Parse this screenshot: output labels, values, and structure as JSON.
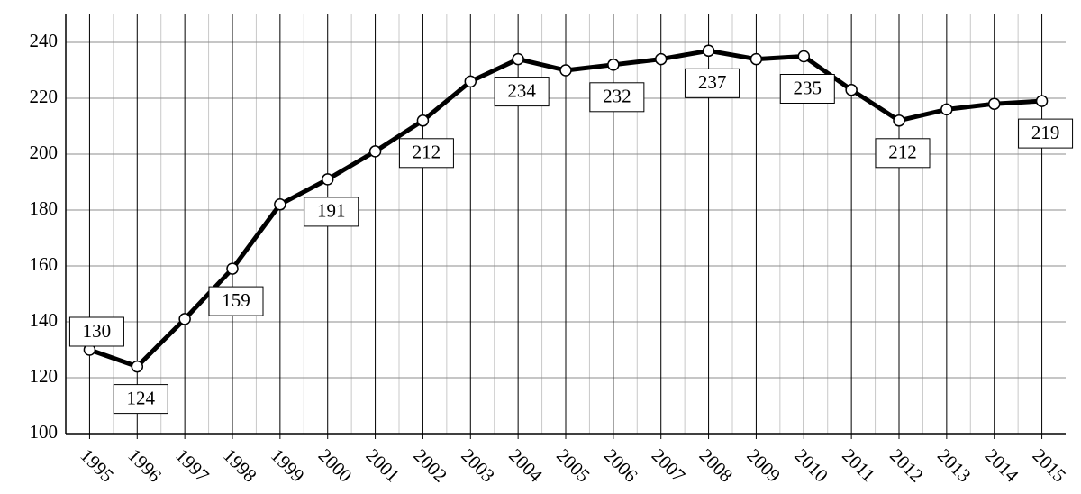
{
  "chart_data": {
    "type": "line",
    "categories": [
      "1995",
      "1996",
      "1997",
      "1998",
      "1999",
      "2000",
      "2001",
      "2002",
      "2003",
      "2004",
      "2005",
      "2006",
      "2007",
      "2008",
      "2009",
      "2010",
      "2011",
      "2012",
      "2013",
      "2014",
      "2015"
    ],
    "values": [
      130,
      124,
      141,
      159,
      182,
      191,
      201,
      212,
      226,
      234,
      230,
      232,
      234,
      237,
      234,
      235,
      223,
      212,
      216,
      218,
      219
    ],
    "labeled_points": [
      0,
      1,
      3,
      5,
      7,
      9,
      11,
      13,
      15,
      17,
      20
    ],
    "color": "#000000",
    "ylim": [
      100,
      250
    ],
    "yticks": [
      100,
      120,
      140,
      160,
      180,
      200,
      220,
      240
    ],
    "grid": true
  }
}
